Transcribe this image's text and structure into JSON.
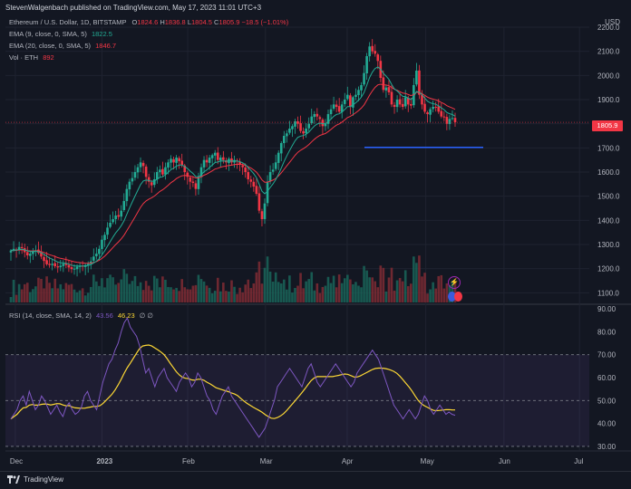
{
  "header": {
    "published": "StevenWalgenbach published on TradingView.com, May 17, 2023 11:01 UTC+3",
    "currency": "USD"
  },
  "legend": {
    "symbol": "Ethereum / U.S. Dollar, 1D, BITSTAMP",
    "ohlc": {
      "O": "1824.6",
      "H": "1836.8",
      "L": "1804.5",
      "C": "1805.9",
      "change": "−18.5 (−1.01%)"
    },
    "ema9": {
      "label": "EMA (9, close, 0, SMA, 5)",
      "value": "1822.5",
      "color": "#22ab94"
    },
    "ema20": {
      "label": "EMA (20, close, 0, SMA, 5)",
      "value": "1846.7",
      "color": "#f23645"
    },
    "vol": {
      "label": "Vol · ETH",
      "value": "892"
    }
  },
  "rsi_legend": {
    "label": "RSI (14, close, SMA, 14, 2)",
    "rsi": "43.56",
    "ma": "46.23",
    "extra": "∅ ∅"
  },
  "price_tag": "1805.9",
  "footer": {
    "brand": "TradingView"
  },
  "chart_data": [
    {
      "type": "candlestick",
      "title": "Ethereum / U.S. Dollar, 1D, BITSTAMP",
      "x_labels": [
        "Dec",
        "2023",
        "Feb",
        "Mar",
        "Apr",
        "May",
        "Jun",
        "Jul"
      ],
      "y_ticks": [
        1100,
        1200,
        1300,
        1400,
        1500,
        1600,
        1700,
        1800,
        1900,
        2000,
        2100,
        2200
      ],
      "ylim": [
        1060,
        2200
      ],
      "close_series": [
        1275,
        1282,
        1278,
        1290,
        1285,
        1268,
        1255,
        1262,
        1270,
        1276,
        1265,
        1250,
        1232,
        1218,
        1215,
        1220,
        1210,
        1205,
        1212,
        1220,
        1215,
        1205,
        1198,
        1200,
        1208,
        1212,
        1210,
        1215,
        1220,
        1230,
        1250,
        1262,
        1282,
        1320,
        1340,
        1370,
        1390,
        1405,
        1420,
        1415,
        1440,
        1480,
        1530,
        1560,
        1575,
        1600,
        1620,
        1640,
        1625,
        1580,
        1560,
        1545,
        1570,
        1600,
        1610,
        1590,
        1620,
        1640,
        1655,
        1640,
        1660,
        1645,
        1630,
        1600,
        1580,
        1560,
        1555,
        1530,
        1580,
        1620,
        1650,
        1640,
        1660,
        1670,
        1680,
        1650,
        1660,
        1650,
        1640,
        1655,
        1640,
        1650,
        1645,
        1630,
        1620,
        1600,
        1570,
        1560,
        1540,
        1510,
        1440,
        1405,
        1470,
        1560,
        1600,
        1610,
        1640,
        1680,
        1720,
        1750,
        1760,
        1780,
        1790,
        1810,
        1800,
        1770,
        1760,
        1780,
        1800,
        1830,
        1840,
        1830,
        1820,
        1790,
        1800,
        1840,
        1860,
        1880,
        1870,
        1850,
        1880,
        1900,
        1920,
        1870,
        1910,
        1920,
        1940,
        1960,
        2010,
        2080,
        2120,
        2100,
        2090,
        2060,
        1990,
        1940,
        1950,
        1930,
        1880,
        1870,
        1900,
        1880,
        1870,
        1910,
        1880,
        1875,
        1960,
        2020,
        1920,
        1880,
        1850,
        1840,
        1860,
        1870,
        1870,
        1850,
        1830,
        1830,
        1800,
        1820,
        1824,
        1806
      ],
      "ema9_last": 1822.5,
      "ema20_last": 1846.7,
      "current_price": 1805.9,
      "horizontal_line": 1702
    },
    {
      "type": "line",
      "title": "RSI (14, close, SMA, 14, 2)",
      "y_ticks": [
        30,
        40,
        50,
        60,
        70,
        80,
        90
      ],
      "ylim": [
        28,
        92
      ],
      "bands": [
        30,
        50,
        70
      ],
      "rsi_last": 43.56,
      "ma_last": 46.23,
      "rsi_series": [
        42,
        44,
        46,
        50,
        52,
        48,
        54,
        50,
        46,
        48,
        52,
        50,
        47,
        44,
        46,
        48,
        45,
        43,
        47,
        49,
        46,
        44,
        45,
        47,
        52,
        54,
        50,
        48,
        46,
        52,
        58,
        62,
        66,
        68,
        72,
        75,
        80,
        84,
        86,
        82,
        80,
        78,
        74,
        68,
        62,
        64,
        60,
        56,
        60,
        62,
        64,
        60,
        58,
        56,
        54,
        58,
        60,
        62,
        60,
        56,
        58,
        62,
        60,
        56,
        52,
        50,
        46,
        44,
        48,
        52,
        54,
        56,
        52,
        50,
        48,
        46,
        44,
        42,
        40,
        38,
        36,
        34,
        36,
        38,
        42,
        46,
        50,
        56,
        58,
        60,
        62,
        64,
        62,
        60,
        58,
        56,
        60,
        64,
        66,
        62,
        58,
        56,
        58,
        60,
        62,
        64,
        66,
        64,
        62,
        60,
        58,
        56,
        58,
        62,
        64,
        66,
        68,
        70,
        72,
        70,
        68,
        64,
        60,
        56,
        52,
        48,
        46,
        44,
        42,
        44,
        46,
        44,
        42,
        44,
        48,
        52,
        50,
        46,
        44,
        46,
        48,
        46,
        44,
        45,
        44,
        43.56
      ]
    }
  ]
}
